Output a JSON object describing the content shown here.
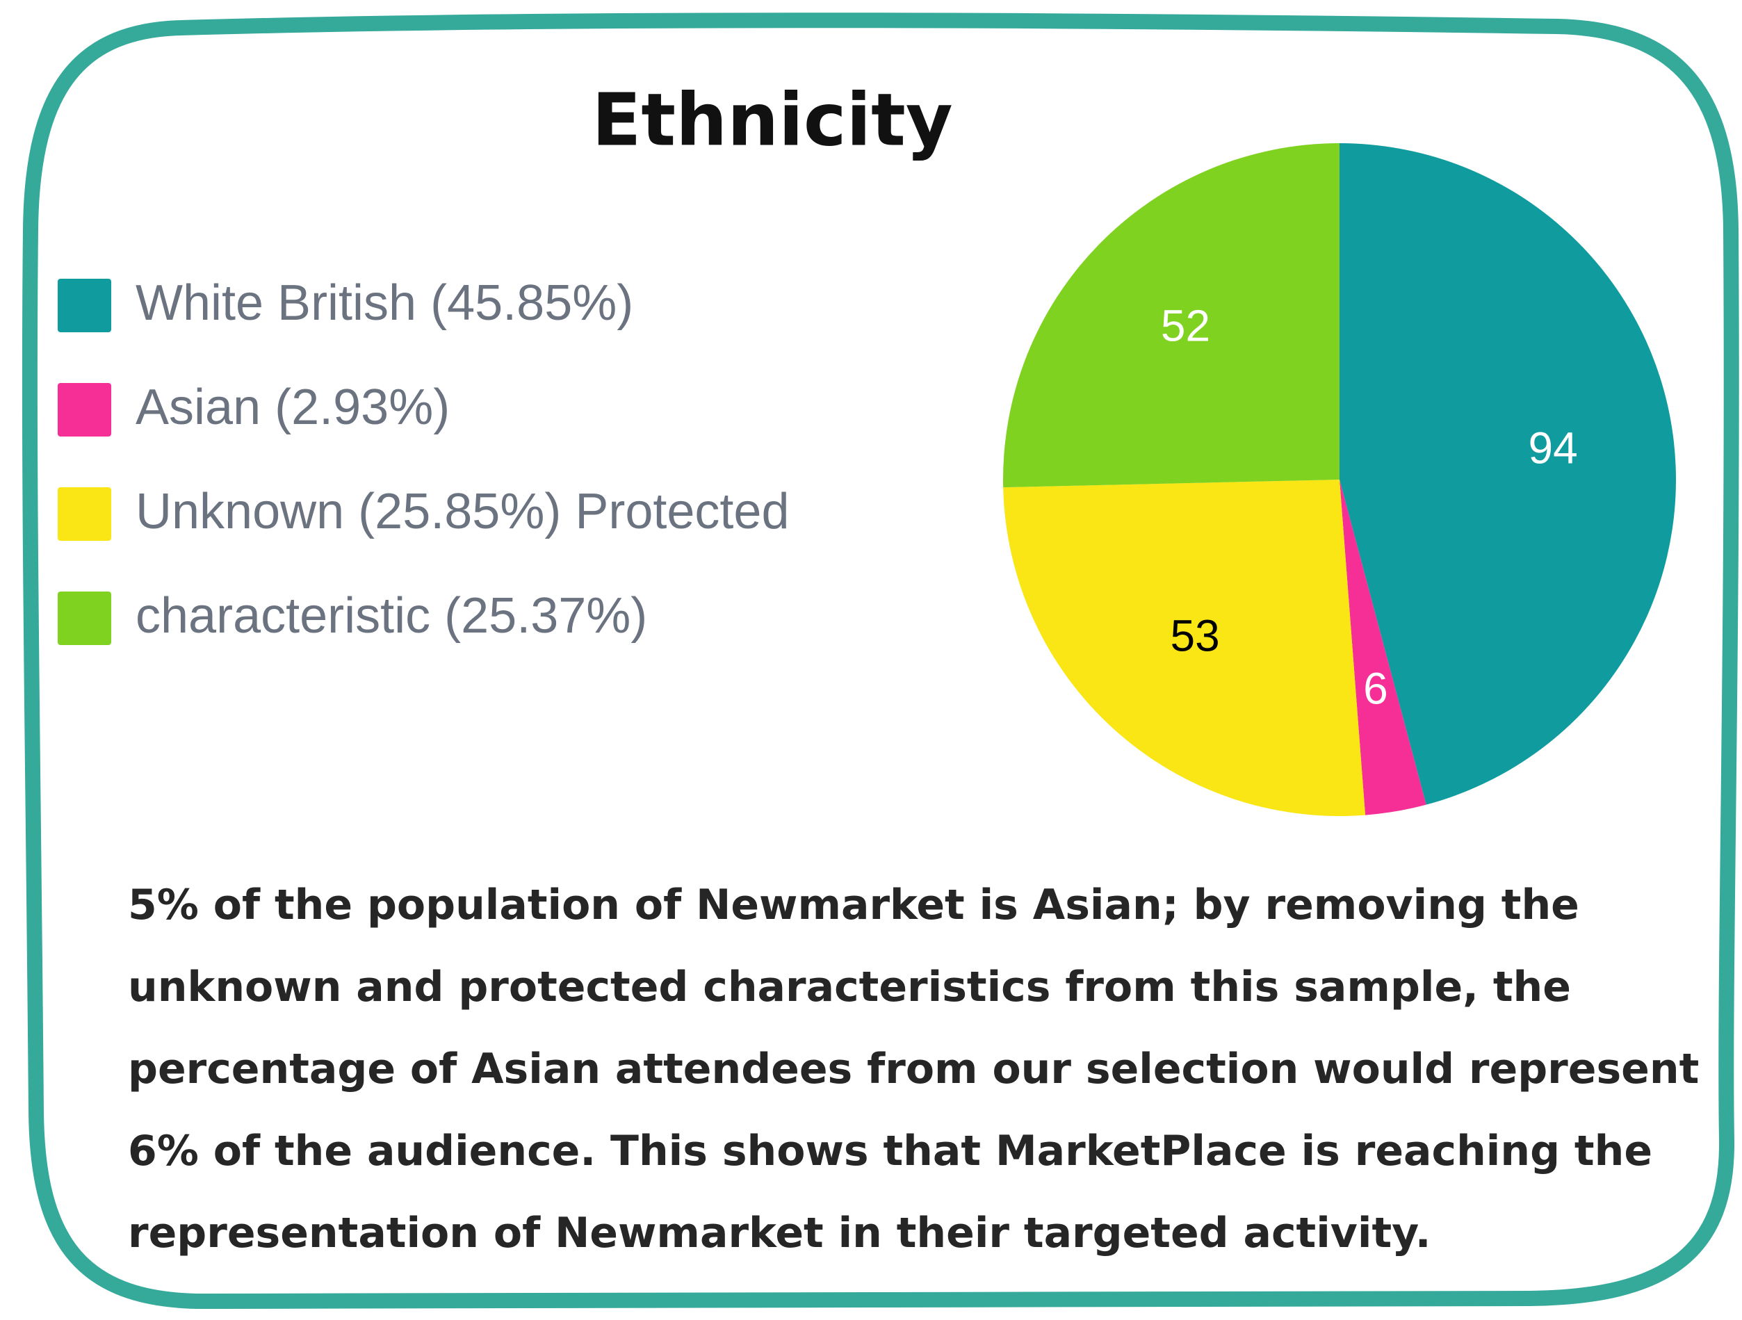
{
  "chart_data": {
    "type": "pie",
    "title": "Ethnicity",
    "categories": [
      "White British (45.85%)",
      "Asian (2.93%)",
      "Unknown (25.85%) Protected",
      "characteristic (25.37%)"
    ],
    "values": [
      94,
      6,
      53,
      52
    ],
    "colors": [
      "#109c9e",
      "#f52f95",
      "#f9e614",
      "#7fd320"
    ],
    "label_colors": [
      "#ffffff",
      "#ffffff",
      "#000000",
      "#ffffff"
    ],
    "legend": "left",
    "text": [
      "5% of the population of Newmarket is Asian; by removing the",
      "unknown and protected characteristics from this sample, the",
      "percentage of Asian attendees from our selection would represent",
      "6% of the audience. This shows that MarketPlace is reaching the",
      "representation of Newmarket in their targeted activity."
    ]
  }
}
